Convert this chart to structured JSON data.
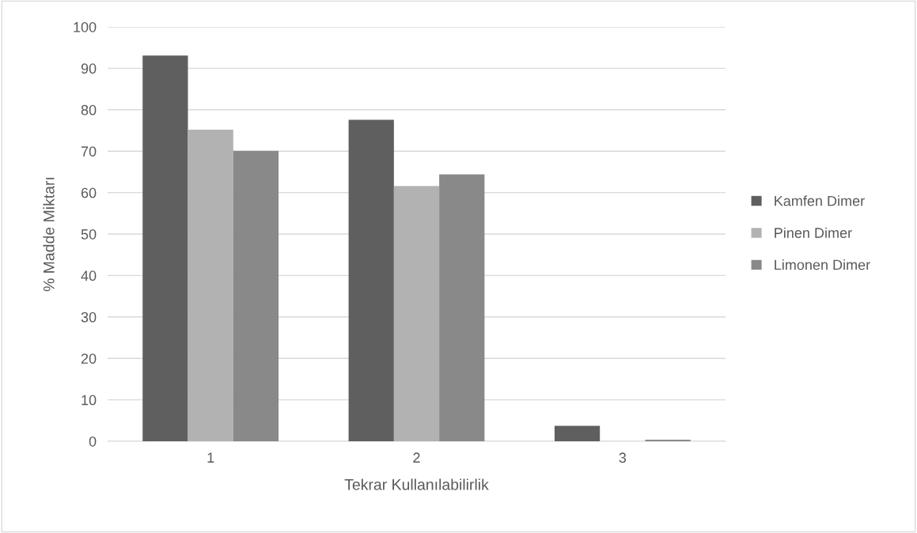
{
  "chart_data": {
    "type": "bar",
    "xlabel": "Tekrar Kullanılabilirlik",
    "ylabel": "% Madde Miktarı",
    "categories": [
      "1",
      "2",
      "3"
    ],
    "series": [
      {
        "name": "Kamfen Dimer",
        "color": "#5f5f5f",
        "values": [
          93.1,
          77.6,
          3.7
        ]
      },
      {
        "name": "Pinen Dimer",
        "color": "#b2b2b2",
        "values": [
          75.2,
          61.6,
          0
        ]
      },
      {
        "name": "Limonen Dimer",
        "color": "#898989",
        "values": [
          70.1,
          64.4,
          0.4
        ]
      }
    ],
    "ylim": [
      0,
      100
    ],
    "yticks": [
      0,
      10,
      20,
      30,
      40,
      50,
      60,
      70,
      80,
      90,
      100
    ],
    "grid": "y",
    "legend": "right"
  }
}
